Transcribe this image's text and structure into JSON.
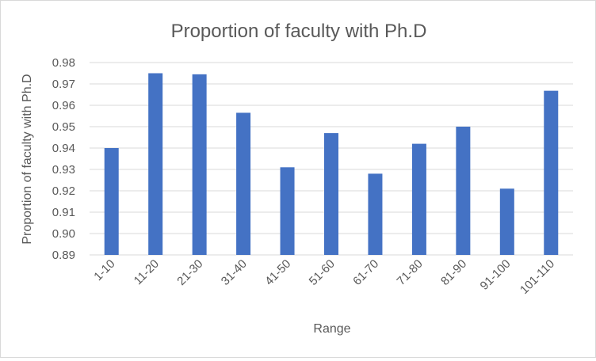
{
  "chart_data": {
    "type": "bar",
    "title": "Proportion of faculty with Ph.D",
    "xlabel": "Range",
    "ylabel": "Proportion of faculty with Ph.D",
    "categories": [
      "1-10",
      "11-20",
      "21-30",
      "31-40",
      "41-50",
      "51-60",
      "61-70",
      "71-80",
      "81-90",
      "91-100",
      "101-110"
    ],
    "values": [
      0.94,
      0.975,
      0.9745,
      0.9565,
      0.931,
      0.947,
      0.928,
      0.942,
      0.95,
      0.921,
      0.9668
    ],
    "ylim": [
      0.89,
      0.98
    ],
    "yticks": [
      "0.89",
      "0.90",
      "0.91",
      "0.92",
      "0.93",
      "0.94",
      "0.95",
      "0.96",
      "0.97",
      "0.98"
    ],
    "grid": true,
    "legend": "none",
    "bar_color": "#4472c4",
    "grid_color": "#d9d9d9"
  }
}
